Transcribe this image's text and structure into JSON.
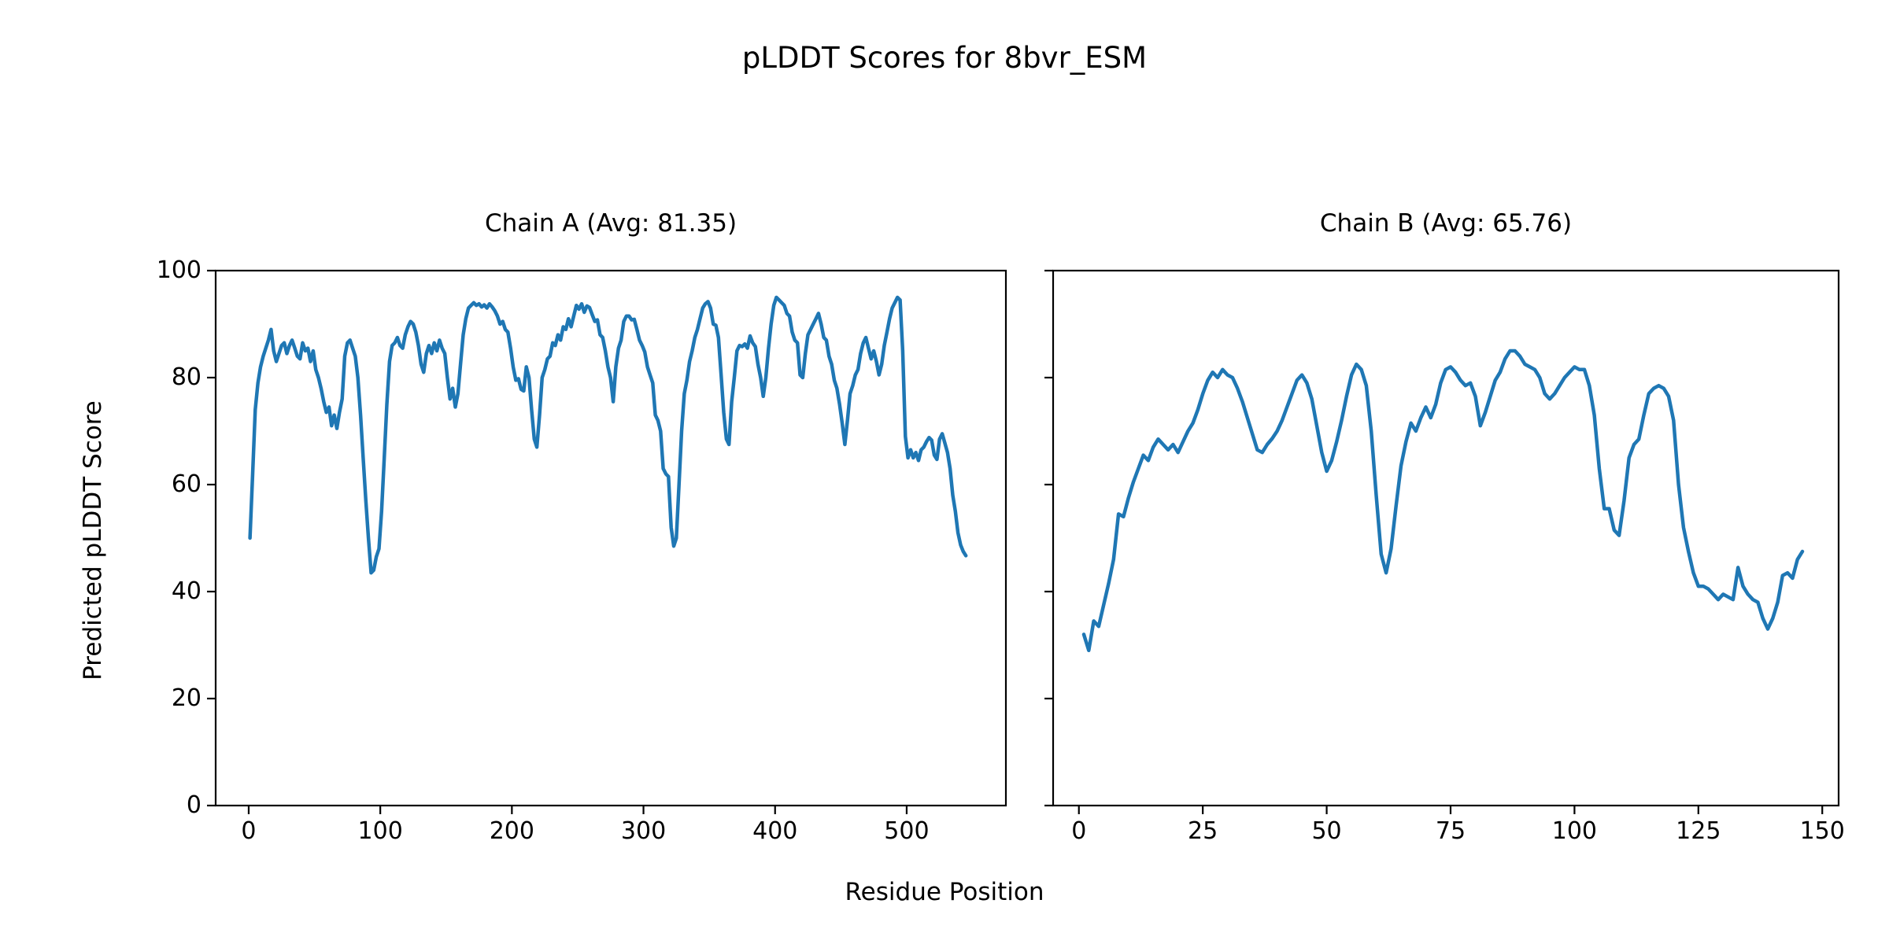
{
  "figure": {
    "suptitle": "pLDDT Scores for 8bvr_ESM",
    "xlabel": "Residue Position",
    "ylabel": "Predicted pLDDT Score",
    "line_color": "#1f77b4",
    "background": "#ffffff",
    "text_color": "#000000"
  },
  "chart_data": [
    {
      "type": "line",
      "title": "Chain A (Avg: 81.35)",
      "legend": "none",
      "grid": false,
      "xticks": [
        0,
        100,
        200,
        300,
        400,
        500
      ],
      "yticks": [
        0,
        20,
        40,
        60,
        80,
        100
      ],
      "xlim": [
        -25.1,
        575.4
      ],
      "ylim": [
        0,
        100
      ],
      "x": [
        1,
        3,
        5,
        7,
        9,
        11,
        13,
        15,
        17,
        19,
        21,
        23,
        25,
        27,
        29,
        31,
        33,
        35,
        37,
        39,
        41,
        43,
        45,
        47,
        49,
        51,
        53,
        55,
        57,
        59,
        61,
        63,
        65,
        67,
        69,
        71,
        73,
        75,
        77,
        79,
        81,
        83,
        85,
        87,
        89,
        91,
        93,
        95,
        97,
        99,
        101,
        103,
        105,
        107,
        109,
        111,
        113,
        115,
        117,
        119,
        121,
        123,
        125,
        127,
        129,
        131,
        133,
        135,
        137,
        139,
        141,
        143,
        145,
        147,
        149,
        151,
        153,
        155,
        157,
        159,
        161,
        163,
        165,
        167,
        169,
        171,
        173,
        175,
        177,
        179,
        181,
        183,
        185,
        187,
        189,
        191,
        193,
        195,
        197,
        199,
        201,
        203,
        205,
        207,
        209,
        211,
        213,
        215,
        217,
        219,
        221,
        223,
        225,
        227,
        229,
        231,
        233,
        235,
        237,
        239,
        241,
        243,
        245,
        247,
        249,
        251,
        253,
        255,
        257,
        259,
        261,
        263,
        265,
        267,
        269,
        271,
        273,
        275,
        277,
        279,
        281,
        283,
        285,
        287,
        289,
        291,
        293,
        295,
        297,
        299,
        301,
        303,
        305,
        307,
        309,
        311,
        313,
        315,
        317,
        319,
        321,
        323,
        325,
        327,
        329,
        331,
        333,
        335,
        337,
        339,
        341,
        343,
        345,
        347,
        349,
        351,
        353,
        355,
        357,
        359,
        361,
        363,
        365,
        367,
        369,
        371,
        373,
        375,
        377,
        379,
        381,
        383,
        385,
        387,
        389,
        391,
        393,
        395,
        397,
        399,
        401,
        403,
        405,
        407,
        409,
        411,
        413,
        415,
        417,
        419,
        421,
        423,
        425,
        427,
        429,
        431,
        433,
        435,
        437,
        439,
        441,
        443,
        445,
        447,
        449,
        451,
        453,
        455,
        457,
        459,
        461,
        463,
        465,
        467,
        469,
        471,
        473,
        475,
        477,
        479,
        481,
        483,
        485,
        487,
        489,
        491,
        493,
        495,
        497,
        499,
        501,
        503,
        505,
        507,
        509,
        511,
        513,
        515,
        517,
        519,
        521,
        523,
        525,
        527,
        529,
        531,
        533,
        535,
        537,
        539,
        541,
        543,
        545
      ],
      "y": [
        50,
        62,
        74,
        79,
        82,
        84,
        85.5,
        87,
        89,
        85,
        83,
        84.5,
        86,
        86.5,
        84.5,
        86,
        87,
        85.5,
        84,
        83.5,
        86.5,
        85,
        85.5,
        83,
        85,
        81.5,
        80,
        78,
        75.5,
        73.5,
        74.5,
        71,
        73,
        70.5,
        73.5,
        76,
        84,
        86.5,
        87,
        85.5,
        84,
        80,
        73,
        65,
        57,
        50,
        43.5,
        44,
        46.5,
        48,
        55,
        65,
        75,
        83,
        86,
        86.5,
        87.5,
        86,
        85.5,
        88,
        89.5,
        90.5,
        90,
        88.5,
        86,
        82.5,
        81,
        84.5,
        86,
        84.5,
        86.5,
        85,
        87,
        85.5,
        84.5,
        80,
        76,
        78,
        74.5,
        77,
        82.5,
        88,
        91,
        93,
        93.5,
        94,
        93.5,
        93.8,
        93.2,
        93.6,
        93,
        93.8,
        93.2,
        92.5,
        91.5,
        90,
        90.5,
        89,
        88.5,
        85.5,
        82,
        79.5,
        79.8,
        77.8,
        77.5,
        82,
        80,
        74,
        68.5,
        67,
        73,
        80,
        81.5,
        83.5,
        84,
        86.5,
        86,
        88,
        87,
        89.5,
        89,
        91,
        89.5,
        91.5,
        93.5,
        92.8,
        93.8,
        92.2,
        93.4,
        93.1,
        91.8,
        90.5,
        90.8,
        88,
        87.5,
        85,
        82,
        80,
        75.5,
        82,
        85.5,
        87,
        90.5,
        91.5,
        91.5,
        90.8,
        90.9,
        89,
        87,
        86,
        84.8,
        82,
        80.5,
        79,
        73,
        72,
        70,
        63,
        62,
        61.5,
        52,
        48.5,
        50,
        60,
        70,
        77,
        79.5,
        83,
        85,
        87.5,
        89,
        91,
        93,
        93.8,
        94.2,
        93,
        90,
        89.8,
        87.5,
        80.5,
        73.5,
        68.5,
        67.5,
        75.5,
        80,
        85,
        86,
        85.8,
        86.3,
        85.5,
        87.8,
        86.5,
        85.8,
        82.5,
        80,
        76.5,
        80,
        85.5,
        90,
        93.5,
        95,
        94.5,
        94,
        93.5,
        92,
        91.5,
        88.5,
        87,
        86.5,
        80.5,
        80,
        84.5,
        88,
        89,
        90,
        91,
        92,
        90,
        87.5,
        87,
        84,
        82.5,
        79.5,
        78,
        75,
        71.5,
        67.5,
        72,
        77,
        78.5,
        80.5,
        81.5,
        84.5,
        86.5,
        87.5,
        85.5,
        83.5,
        85,
        83,
        80.5,
        82.5,
        86,
        88.5,
        91,
        93,
        94,
        95,
        94.5,
        85,
        69,
        65,
        66.5,
        65,
        66,
        64.5,
        66.5,
        67,
        68,
        68.8,
        68.3,
        65.5,
        64.7,
        68.5,
        69.5,
        67.8,
        66,
        63,
        58,
        55,
        51,
        48.7,
        47.5,
        46.7
      ]
    },
    {
      "type": "line",
      "title": "Chain B (Avg: 65.76)",
      "legend": "none",
      "grid": false,
      "xticks": [
        0,
        25,
        50,
        75,
        100,
        125,
        150
      ],
      "yticks": [
        0,
        20,
        40,
        60,
        80,
        100
      ],
      "xlim": [
        -5.2,
        153.3
      ],
      "ylim": [
        0,
        100
      ],
      "x": [
        1,
        2,
        3,
        4,
        5,
        6,
        7,
        8,
        9,
        10,
        11,
        12,
        13,
        14,
        15,
        16,
        17,
        18,
        19,
        20,
        21,
        22,
        23,
        24,
        25,
        26,
        27,
        28,
        29,
        30,
        31,
        32,
        33,
        34,
        35,
        36,
        37,
        38,
        39,
        40,
        41,
        42,
        43,
        44,
        45,
        46,
        47,
        48,
        49,
        50,
        51,
        52,
        53,
        54,
        55,
        56,
        57,
        58,
        59,
        60,
        61,
        62,
        63,
        64,
        65,
        66,
        67,
        68,
        69,
        70,
        71,
        72,
        73,
        74,
        75,
        76,
        77,
        78,
        79,
        80,
        81,
        82,
        83,
        84,
        85,
        86,
        87,
        88,
        89,
        90,
        91,
        92,
        93,
        94,
        95,
        96,
        97,
        98,
        99,
        100,
        101,
        102,
        103,
        104,
        105,
        106,
        107,
        108,
        109,
        110,
        111,
        112,
        113,
        114,
        115,
        116,
        117,
        118,
        119,
        120,
        121,
        122,
        123,
        124,
        125,
        126,
        127,
        128,
        129,
        130,
        131,
        132,
        133,
        134,
        135,
        136,
        137,
        138,
        139,
        140,
        141,
        142,
        143,
        144,
        145,
        146
      ],
      "y": [
        32,
        29,
        34.5,
        33.5,
        37.5,
        41.5,
        46,
        54.5,
        54,
        57.5,
        60.5,
        63,
        65.5,
        64.5,
        67,
        68.5,
        67.5,
        66.5,
        67.5,
        66,
        68,
        70,
        71.5,
        74,
        77,
        79.5,
        81,
        80,
        81.5,
        80.5,
        80,
        78,
        75.5,
        72.5,
        69.5,
        66.5,
        66,
        67.5,
        68.6,
        70,
        72,
        74.5,
        77,
        79.5,
        80.5,
        79,
        76,
        71,
        66,
        62.5,
        64.5,
        68,
        72,
        76.5,
        80.5,
        82.5,
        81.5,
        78.5,
        70,
        58,
        47,
        43.5,
        48,
        56,
        63.5,
        68,
        71.5,
        70,
        72.5,
        74.5,
        72.5,
        75,
        79,
        81.5,
        82,
        81,
        79.5,
        78.5,
        79,
        76.5,
        71,
        73.5,
        76.5,
        79.5,
        81,
        83.5,
        85,
        85,
        84,
        82.5,
        82,
        81.5,
        80,
        77,
        76,
        77,
        78.5,
        80,
        81,
        82,
        81.5,
        81.5,
        78.5,
        73,
        63,
        55.5,
        55.5,
        51.5,
        50.5,
        57,
        65,
        67.5,
        68.5,
        73,
        77,
        78,
        78.5,
        78,
        76.5,
        72,
        60,
        52,
        47.5,
        43.5,
        41,
        41,
        40.5,
        39.5,
        38.5,
        39.5,
        39,
        38.5,
        44.5,
        41,
        39.5,
        38.5,
        38,
        35,
        33,
        35,
        38,
        43,
        43.5,
        42.5,
        46,
        47.5
      ]
    }
  ]
}
